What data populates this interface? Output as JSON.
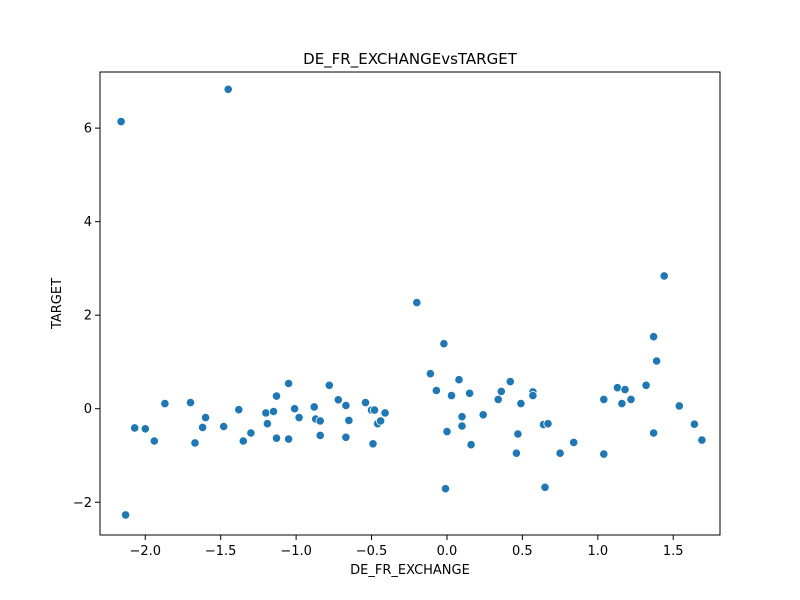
{
  "chart_data": {
    "type": "scatter",
    "title": "DE_FR_EXCHANGEvsTARGET",
    "xlabel": "DE_FR_EXCHANGE",
    "ylabel": "TARGET",
    "xlim": [
      -2.3,
      1.81
    ],
    "ylim": [
      -2.7,
      7.2
    ],
    "xticks": [
      -2.0,
      -1.5,
      -1.0,
      -0.5,
      0.0,
      0.5,
      1.0,
      1.5
    ],
    "xtick_labels": [
      "−2.0",
      "−1.5",
      "−1.0",
      "−0.5",
      "0.0",
      "0.5",
      "1.0",
      "1.5"
    ],
    "yticks": [
      -2,
      0,
      2,
      4,
      6
    ],
    "ytick_labels": [
      "−2",
      "0",
      "2",
      "4",
      "6"
    ],
    "grid": false,
    "marker_color": "#1f77b4",
    "points": [
      {
        "x": -2.16,
        "y": 6.14
      },
      {
        "x": -1.45,
        "y": 6.83
      },
      {
        "x": -2.13,
        "y": -2.27
      },
      {
        "x": -2.07,
        "y": -0.41
      },
      {
        "x": -2.0,
        "y": -0.43
      },
      {
        "x": -1.94,
        "y": -0.69
      },
      {
        "x": -1.87,
        "y": 0.11
      },
      {
        "x": -1.7,
        "y": 0.13
      },
      {
        "x": -1.67,
        "y": -0.73
      },
      {
        "x": -1.62,
        "y": -0.4
      },
      {
        "x": -1.6,
        "y": -0.19
      },
      {
        "x": -1.48,
        "y": -0.38
      },
      {
        "x": -1.38,
        "y": -0.02
      },
      {
        "x": -1.35,
        "y": -0.69
      },
      {
        "x": -1.3,
        "y": -0.52
      },
      {
        "x": -1.2,
        "y": -0.09
      },
      {
        "x": -1.19,
        "y": -0.32
      },
      {
        "x": -1.15,
        "y": -0.06
      },
      {
        "x": -1.13,
        "y": 0.27
      },
      {
        "x": -1.13,
        "y": -0.63
      },
      {
        "x": -1.05,
        "y": 0.54
      },
      {
        "x": -1.05,
        "y": -0.65
      },
      {
        "x": -1.01,
        "y": 0.0
      },
      {
        "x": -0.98,
        "y": -0.19
      },
      {
        "x": -0.88,
        "y": 0.04
      },
      {
        "x": -0.87,
        "y": -0.22
      },
      {
        "x": -0.84,
        "y": -0.26
      },
      {
        "x": -0.84,
        "y": -0.57
      },
      {
        "x": -0.78,
        "y": 0.5
      },
      {
        "x": -0.72,
        "y": 0.19
      },
      {
        "x": -0.67,
        "y": 0.07
      },
      {
        "x": -0.67,
        "y": -0.61
      },
      {
        "x": -0.65,
        "y": -0.25
      },
      {
        "x": -0.54,
        "y": 0.13
      },
      {
        "x": -0.5,
        "y": -0.03
      },
      {
        "x": -0.49,
        "y": -0.75
      },
      {
        "x": -0.48,
        "y": -0.03
      },
      {
        "x": -0.46,
        "y": -0.32
      },
      {
        "x": -0.44,
        "y": -0.26
      },
      {
        "x": -0.41,
        "y": -0.09
      },
      {
        "x": -0.2,
        "y": 2.27
      },
      {
        "x": -0.11,
        "y": 0.75
      },
      {
        "x": -0.07,
        "y": 0.39
      },
      {
        "x": -0.02,
        "y": 1.39
      },
      {
        "x": -0.01,
        "y": -1.71
      },
      {
        "x": 0.0,
        "y": -0.49
      },
      {
        "x": 0.03,
        "y": 0.28
      },
      {
        "x": 0.08,
        "y": 0.62
      },
      {
        "x": 0.1,
        "y": -0.17
      },
      {
        "x": 0.1,
        "y": -0.37
      },
      {
        "x": 0.15,
        "y": 0.33
      },
      {
        "x": 0.16,
        "y": -0.77
      },
      {
        "x": 0.24,
        "y": -0.13
      },
      {
        "x": 0.34,
        "y": 0.2
      },
      {
        "x": 0.36,
        "y": 0.37
      },
      {
        "x": 0.42,
        "y": 0.58
      },
      {
        "x": 0.46,
        "y": -0.95
      },
      {
        "x": 0.47,
        "y": -0.54
      },
      {
        "x": 0.49,
        "y": 0.11
      },
      {
        "x": 0.57,
        "y": 0.36
      },
      {
        "x": 0.57,
        "y": 0.28
      },
      {
        "x": 0.64,
        "y": -0.34
      },
      {
        "x": 0.65,
        "y": -1.68
      },
      {
        "x": 0.67,
        "y": -0.32
      },
      {
        "x": 0.75,
        "y": -0.95
      },
      {
        "x": 0.84,
        "y": -0.72
      },
      {
        "x": 1.04,
        "y": 0.2
      },
      {
        "x": 1.04,
        "y": -0.97
      },
      {
        "x": 1.13,
        "y": 0.45
      },
      {
        "x": 1.16,
        "y": 0.11
      },
      {
        "x": 1.18,
        "y": 0.41
      },
      {
        "x": 1.22,
        "y": 0.2
      },
      {
        "x": 1.32,
        "y": 0.5
      },
      {
        "x": 1.37,
        "y": 1.54
      },
      {
        "x": 1.37,
        "y": -0.52
      },
      {
        "x": 1.39,
        "y": 1.02
      },
      {
        "x": 1.44,
        "y": 2.84
      },
      {
        "x": 1.54,
        "y": 0.06
      },
      {
        "x": 1.64,
        "y": -0.33
      },
      {
        "x": 1.69,
        "y": -0.67
      }
    ]
  }
}
